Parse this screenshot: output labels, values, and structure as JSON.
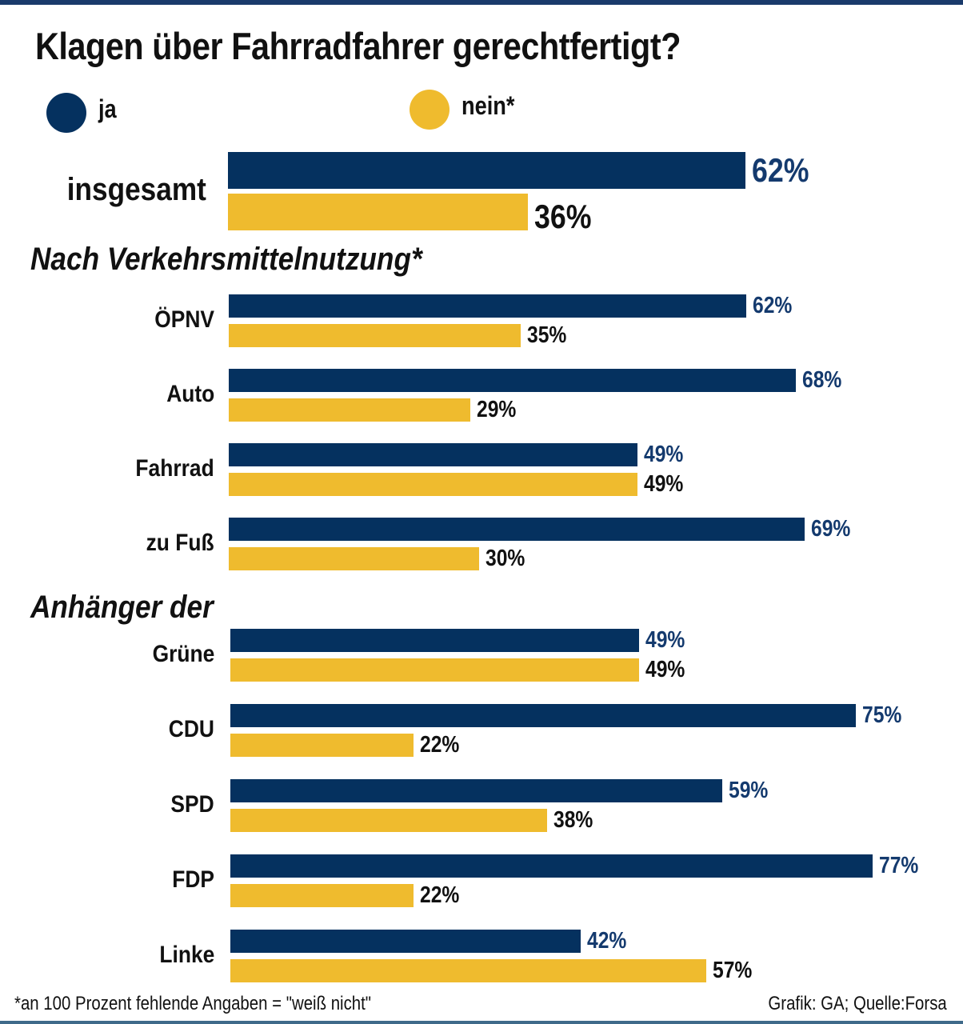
{
  "colors": {
    "ja": "#05315f",
    "nein": "#efbb2e",
    "ja_label": "#143a6e",
    "nein_label": "#111111"
  },
  "chart_data": {
    "type": "bar",
    "orientation": "horizontal",
    "title": "Klagen über Fahrradfahrer gerechtfertigt?",
    "legend": [
      {
        "key": "ja",
        "label": "ja"
      },
      {
        "key": "nein",
        "label": "nein*"
      }
    ],
    "legend_position": "top-left",
    "unit": "%",
    "xlim": [
      0,
      100
    ],
    "grid": false,
    "groups": [
      {
        "name": "overall",
        "section_title": "",
        "categories": [
          "insgesamt"
        ],
        "series": [
          {
            "name": "ja",
            "values": [
              62
            ]
          },
          {
            "name": "nein",
            "values": [
              36
            ]
          }
        ]
      },
      {
        "name": "verkehrsmittel",
        "section_title": "Nach Verkehrsmittelnutzung*",
        "categories": [
          "ÖPNV",
          "Auto",
          "Fahrrad",
          "zu Fuß"
        ],
        "series": [
          {
            "name": "ja",
            "values": [
              62,
              68,
              49,
              69
            ]
          },
          {
            "name": "nein",
            "values": [
              35,
              29,
              49,
              30
            ]
          }
        ]
      },
      {
        "name": "parteien",
        "section_title": "Anhänger der",
        "categories": [
          "Grüne",
          "CDU",
          "SPD",
          "FDP",
          "Linke"
        ],
        "series": [
          {
            "name": "ja",
            "values": [
              49,
              75,
              59,
              77,
              42
            ]
          },
          {
            "name": "nein",
            "values": [
              49,
              22,
              38,
              22,
              57
            ]
          }
        ]
      }
    ],
    "footnote": "*an 100 Prozent fehlende Angaben = \"weiß nicht\"",
    "source": "Grafik: GA; Quelle:Forsa"
  }
}
